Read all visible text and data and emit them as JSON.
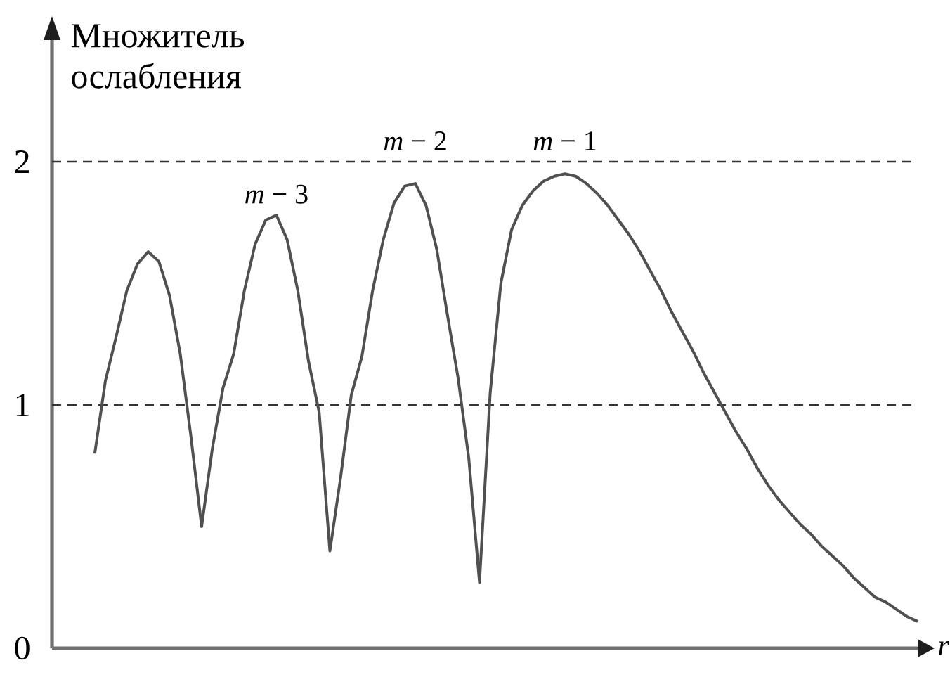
{
  "chart_data": {
    "type": "line",
    "ylabel": "Множитель ослабления",
    "xlabel": "r",
    "categories": [
      null,
      null,
      null,
      null,
      null,
      null,
      null,
      null,
      null,
      null,
      null,
      null,
      null,
      null,
      null,
      null,
      null,
      null,
      null,
      null,
      null,
      null,
      null,
      null,
      null,
      null,
      null,
      null,
      null,
      null,
      null,
      null,
      null,
      null,
      null,
      null,
      null,
      null,
      null,
      null,
      null,
      null,
      null,
      null,
      null,
      null,
      null,
      null,
      null,
      null,
      null,
      null,
      null,
      null,
      null,
      null,
      null,
      null,
      null,
      null,
      null,
      null,
      null,
      null,
      null,
      null,
      null,
      null,
      null,
      null,
      null,
      null,
      null,
      null,
      null,
      null,
      null,
      null,
      null,
      null,
      null,
      null
    ],
    "series": [
      {
        "color": "#505050",
        "values": [
          null,
          null,
          null,
          null,
          0.8,
          1.1,
          1.28,
          1.47,
          1.58,
          1.63,
          1.59,
          1.45,
          1.21,
          0.87,
          0.5,
          0.82,
          1.07,
          1.21,
          1.47,
          1.66,
          1.76,
          1.78,
          1.68,
          1.47,
          1.18,
          0.97,
          0.4,
          0.7,
          1.04,
          1.2,
          1.47,
          1.68,
          1.83,
          1.9,
          1.91,
          1.82,
          1.64,
          1.37,
          1.11,
          0.78,
          0.27,
          1.05,
          1.5,
          1.72,
          1.82,
          1.88,
          1.92,
          1.94,
          1.95,
          1.94,
          1.91,
          1.87,
          1.82,
          1.76,
          1.7,
          1.63,
          1.55,
          1.47,
          1.38,
          1.3,
          1.22,
          1.13,
          1.05,
          0.97,
          0.89,
          0.82,
          0.74,
          0.67,
          0.61,
          0.56,
          0.51,
          0.47,
          0.42,
          0.38,
          0.34,
          0.29,
          0.25,
          0.21,
          0.19,
          0.16,
          0.13,
          0.11
        ]
      }
    ],
    "ylim": [
      0,
      2.5
    ],
    "yticks": [
      0,
      1,
      2
    ],
    "tick_labels": "y",
    "marker": "none",
    "line_style": "solid",
    "ref_lines": [
      {
        "axis": "y",
        "value": 1,
        "color": "#333333",
        "line_style": "dashed"
      },
      {
        "axis": "y",
        "value": 2,
        "color": "#333333",
        "line_style": "dashed"
      }
    ],
    "annotations": [
      "*m* − 3",
      "*m* − 2",
      "*m* − 1"
    ]
  }
}
